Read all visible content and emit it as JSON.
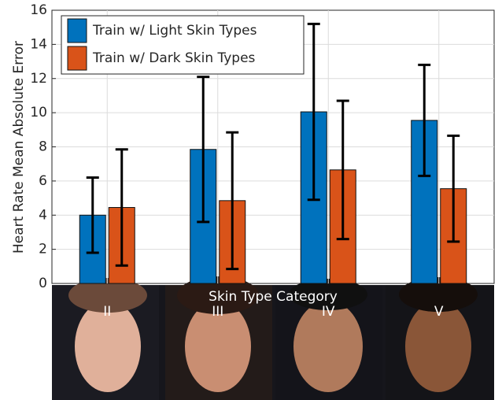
{
  "chart_data": {
    "type": "bar",
    "y_label": "Heart Rate Mean Absolute Error",
    "x_label": "Skin Type Category",
    "categories": [
      "II",
      "III",
      "IV",
      "V"
    ],
    "series": [
      {
        "name": "Train w/ Light Skin Types",
        "color": "#0072bd",
        "values": [
          4.0,
          7.85,
          10.05,
          9.55
        ],
        "errors": [
          2.2,
          4.25,
          5.15,
          3.25
        ]
      },
      {
        "name": "Train w/ Dark Skin Types",
        "color": "#d95319",
        "values": [
          4.45,
          4.85,
          6.65,
          5.55
        ],
        "errors": [
          3.4,
          4.0,
          4.05,
          3.1
        ]
      }
    ],
    "ylim": [
      0,
      16
    ],
    "yticks": [
      0,
      2,
      4,
      6,
      8,
      10,
      12,
      14,
      16
    ],
    "grid": true,
    "legend": "upper-left"
  }
}
